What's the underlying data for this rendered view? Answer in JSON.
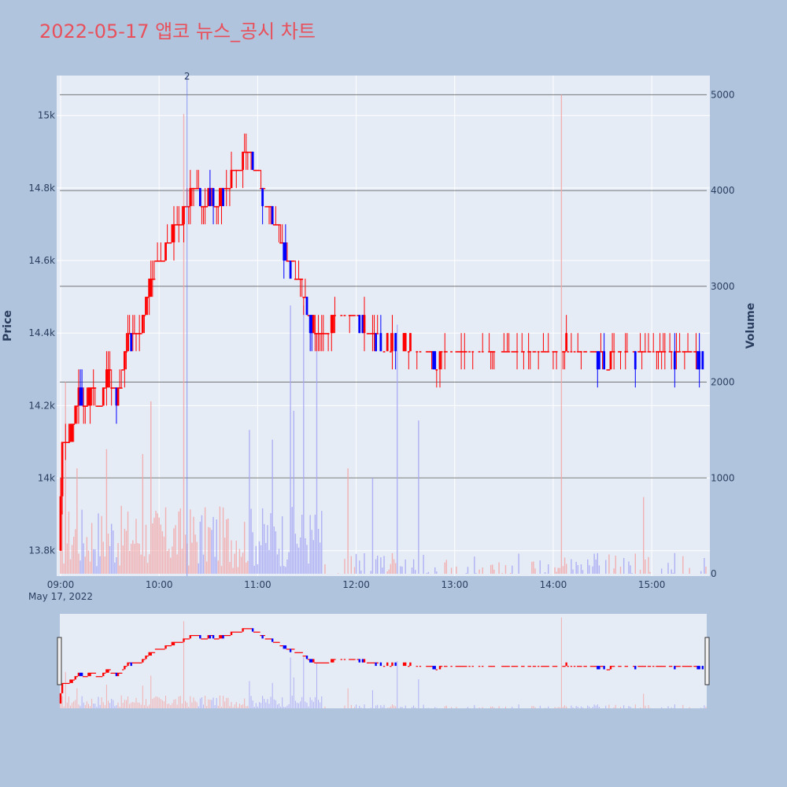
{
  "title": "2022-05-17 앱코 뉴스_공시 차트",
  "colors": {
    "background": "#b0c4de",
    "plot_bg": "#e5ecf6",
    "up": "#ff0000",
    "down": "#0000ff",
    "title": "#e8505b",
    "grid": "#ffffff",
    "hline": "#444444"
  },
  "chart_data": {
    "type": "candlestick",
    "xlabel_date": "May 17, 2022",
    "ylabel_left": "Price",
    "ylabel_right": "Volume",
    "x_ticks": [
      "09:00",
      "10:00",
      "11:00",
      "12:00",
      "13:00",
      "14:00",
      "15:00"
    ],
    "x_tick_minutes": [
      0,
      60,
      120,
      180,
      240,
      300,
      360
    ],
    "x_range_minutes": [
      0,
      393
    ],
    "y_ticks_left": [
      "13.8k",
      "14k",
      "14.2k",
      "14.4k",
      "14.6k",
      "14.8k",
      "15k"
    ],
    "y_tick_values_left": [
      13800,
      14000,
      14200,
      14400,
      14600,
      14800,
      15000
    ],
    "y_range_left": [
      13730,
      15110
    ],
    "y_ticks_right": [
      "0",
      "1000",
      "2000",
      "3000",
      "4000",
      "5000"
    ],
    "y_tick_values_right": [
      0,
      1000,
      2000,
      3000,
      4000,
      5000
    ],
    "y_range_right": [
      0,
      5200
    ],
    "horizontal_lines_right": [
      2000,
      3000,
      4000,
      5000,
      1000
    ],
    "news_marker": {
      "minute": 77,
      "label": "2"
    },
    "price_path": [
      [
        0,
        13810
      ],
      [
        2,
        14080
      ],
      [
        5,
        14100
      ],
      [
        8,
        14130
      ],
      [
        12,
        14240
      ],
      [
        15,
        14200
      ],
      [
        20,
        14240
      ],
      [
        25,
        14200
      ],
      [
        30,
        14280
      ],
      [
        35,
        14220
      ],
      [
        38,
        14280
      ],
      [
        42,
        14380
      ],
      [
        46,
        14380
      ],
      [
        50,
        14420
      ],
      [
        54,
        14500
      ],
      [
        58,
        14580
      ],
      [
        62,
        14600
      ],
      [
        66,
        14640
      ],
      [
        70,
        14680
      ],
      [
        74,
        14700
      ],
      [
        77,
        14760
      ],
      [
        80,
        14780
      ],
      [
        84,
        14780
      ],
      [
        88,
        14760
      ],
      [
        92,
        14780
      ],
      [
        96,
        14760
      ],
      [
        100,
        14780
      ],
      [
        104,
        14820
      ],
      [
        108,
        14840
      ],
      [
        112,
        14880
      ],
      [
        115,
        14920
      ],
      [
        118,
        14860
      ],
      [
        121,
        14840
      ],
      [
        124,
        14780
      ],
      [
        127,
        14760
      ],
      [
        130,
        14720
      ],
      [
        133,
        14680
      ],
      [
        136,
        14640
      ],
      [
        139,
        14600
      ],
      [
        142,
        14580
      ],
      [
        145,
        14560
      ],
      [
        148,
        14520
      ],
      [
        151,
        14460
      ],
      [
        154,
        14420
      ],
      [
        160,
        14400
      ],
      [
        170,
        14440
      ],
      [
        180,
        14460
      ],
      [
        185,
        14420
      ],
      [
        190,
        14400
      ],
      [
        198,
        14360
      ],
      [
        205,
        14380
      ],
      [
        212,
        14370
      ],
      [
        220,
        14360
      ],
      [
        230,
        14320
      ],
      [
        238,
        14350
      ],
      [
        246,
        14360
      ],
      [
        255,
        14350
      ],
      [
        265,
        14350
      ],
      [
        275,
        14350
      ],
      [
        283,
        14340
      ],
      [
        290,
        14360
      ],
      [
        300,
        14350
      ],
      [
        310,
        14370
      ],
      [
        318,
        14350
      ],
      [
        326,
        14340
      ],
      [
        334,
        14320
      ],
      [
        342,
        14350
      ],
      [
        350,
        14330
      ],
      [
        358,
        14350
      ],
      [
        366,
        14350
      ],
      [
        375,
        14330
      ],
      [
        384,
        14350
      ],
      [
        393,
        14320
      ]
    ],
    "volume_spikes": [
      {
        "minute": 3,
        "value": 2000
      },
      {
        "minute": 10,
        "value": 1100
      },
      {
        "minute": 28,
        "value": 1300
      },
      {
        "minute": 50,
        "value": 1250
      },
      {
        "minute": 55,
        "value": 1800
      },
      {
        "minute": 75,
        "value": 4800
      },
      {
        "minute": 115,
        "value": 1500
      },
      {
        "minute": 129,
        "value": 1400
      },
      {
        "minute": 140,
        "value": 2800
      },
      {
        "minute": 142,
        "value": 1700
      },
      {
        "minute": 148,
        "value": 2800
      },
      {
        "minute": 156,
        "value": 2500
      },
      {
        "minute": 175,
        "value": 1100
      },
      {
        "minute": 190,
        "value": 1000
      },
      {
        "minute": 205,
        "value": 2600
      },
      {
        "minute": 218,
        "value": 1600
      },
      {
        "minute": 305,
        "value": 5000
      },
      {
        "minute": 355,
        "value": 800
      }
    ]
  }
}
